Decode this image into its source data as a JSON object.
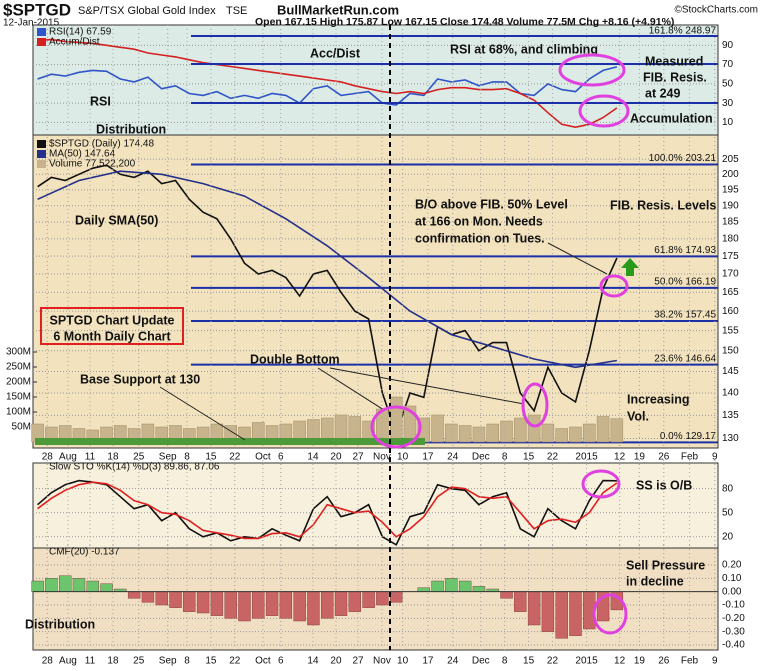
{
  "header": {
    "symbol": "$SPTGD",
    "name": "S&P/TSX Global Gold Index",
    "exchange": "TSE",
    "date": "12-Jan-2015",
    "site": "BullMarketRun.com",
    "quote": "Open 167.15  High 175.87  Low 167.15  Close 174.48  Volume 77.5M  Chg +8.16 (+4.91%)",
    "credit": "©StockCharts.com"
  },
  "annotations": [
    "Acc/Dist",
    "RSI at 68%, and climbing",
    "Measured",
    "FIB. Resis.",
    "at 249",
    "RSI",
    "Accumulation",
    "Distribution",
    "Daily SMA(50)",
    "B/O above FIB. 50% Level",
    "at 166 on Mon. Needs",
    "confirmation on Tues.",
    "FIB. Resis. Levels",
    "SPTGD Chart Update",
    "6 Month Daily Chart",
    "Double Bottom",
    "Base Support at 130",
    "Increasing",
    "Vol.",
    "SS is O/B",
    "Sell Pressure",
    "in decline",
    "Distribution",
    "161.8% 248.97"
  ],
  "chart_data": [
    {
      "type": "line",
      "xlim": [
        0,
        149
      ],
      "ylim": [
        0,
        108
      ],
      "yticks": [
        10,
        30,
        50,
        70,
        90
      ],
      "grid": true,
      "x": [
        1,
        4,
        7,
        10,
        13,
        16,
        19,
        22,
        25,
        28,
        31,
        34,
        37,
        40,
        43,
        46,
        49,
        52,
        55,
        58,
        61,
        64,
        67,
        70,
        73,
        76,
        79,
        82,
        85,
        88,
        91,
        94,
        97,
        100,
        103,
        106,
        109,
        112,
        115,
        118,
        121,
        124,
        127
      ],
      "series": [
        {
          "name": "RSI(14) 67.59",
          "color": "#2f55c8",
          "values": [
            55,
            60,
            58,
            62,
            64,
            63,
            55,
            52,
            57,
            45,
            48,
            40,
            38,
            42,
            35,
            38,
            35,
            40,
            38,
            30,
            45,
            48,
            38,
            40,
            42,
            30,
            28,
            40,
            38,
            55,
            52,
            54,
            48,
            52,
            52,
            40,
            38,
            50,
            44,
            42,
            55,
            64,
            67.59
          ]
        },
        {
          "name": "Accum/Dist",
          "color": "#d42020",
          "values": [
            95,
            96,
            94,
            93,
            92,
            90,
            88,
            86,
            82,
            80,
            78,
            75,
            72,
            70,
            68,
            66,
            64,
            62,
            60,
            58,
            56,
            54,
            52,
            48,
            45,
            42,
            40,
            42,
            40,
            44,
            46,
            46,
            44,
            44,
            45,
            40,
            33,
            20,
            8,
            5,
            8,
            15,
            25
          ]
        }
      ]
    },
    {
      "type": "line",
      "log": true,
      "xlim": [
        0,
        149
      ],
      "ylim": [
        128,
        211.5
      ],
      "yticks": [
        130,
        135,
        140,
        145,
        150,
        155,
        160,
        165,
        170,
        175,
        180,
        185,
        190,
        195,
        200,
        205
      ],
      "grid": true,
      "y2lim": [
        0,
        300000000
      ],
      "y2ticks": [
        {
          "value": 50000000,
          "label": "50M"
        },
        {
          "value": 100000000,
          "label": "100M"
        },
        {
          "value": 150000000,
          "label": "150M"
        },
        {
          "value": 200000000,
          "label": "200M"
        },
        {
          "value": 250000000,
          "label": "250M"
        },
        {
          "value": 300000000,
          "label": "300M"
        }
      ],
      "xticks": [
        {
          "value": 3.1,
          "label": "28"
        },
        {
          "value": 7.6,
          "label": "Aug"
        },
        {
          "value": 12.4,
          "label": "11"
        },
        {
          "value": 17.4,
          "label": "18"
        },
        {
          "value": 23,
          "label": "25"
        },
        {
          "value": 29.3,
          "label": "Sep"
        },
        {
          "value": 33.5,
          "label": "8"
        },
        {
          "value": 38.7,
          "label": "15"
        },
        {
          "value": 43.9,
          "label": "22"
        },
        {
          "value": 50,
          "label": "Oct"
        },
        {
          "value": 53.9,
          "label": "6"
        },
        {
          "value": 60.9,
          "label": "14"
        },
        {
          "value": 65.9,
          "label": "20"
        },
        {
          "value": 70.7,
          "label": "27"
        },
        {
          "value": 75.9,
          "label": "Nov"
        },
        {
          "value": 80.4,
          "label": "10"
        },
        {
          "value": 85.9,
          "label": "17"
        },
        {
          "value": 91.3,
          "label": "24"
        },
        {
          "value": 97.4,
          "label": "Dec"
        },
        {
          "value": 102.6,
          "label": "8"
        },
        {
          "value": 107.8,
          "label": "15"
        },
        {
          "value": 113,
          "label": "22"
        },
        {
          "value": 120.4,
          "label": "2015"
        },
        {
          "value": 127.6,
          "label": "12"
        },
        {
          "value": 131.9,
          "label": "19"
        },
        {
          "value": 137.2,
          "label": "26"
        },
        {
          "value": 142.8,
          "label": "Feb"
        },
        {
          "value": 148.3,
          "label": "9"
        }
      ],
      "fib_levels": [
        {
          "value": 203.21,
          "label": "100.0% 203.21"
        },
        {
          "value": 174.93,
          "label": "61.8% 174.93"
        },
        {
          "value": 166.19,
          "label": "50.0% 166.19"
        },
        {
          "value": 157.45,
          "label": "38.2% 157.45"
        },
        {
          "value": 146.64,
          "label": "23.6% 146.64"
        },
        {
          "value": 129.17,
          "label": "0.0% 129.17"
        }
      ],
      "x": [
        1,
        4,
        7,
        10,
        13,
        16,
        19,
        22,
        25,
        28,
        31,
        34,
        37,
        40,
        43,
        46,
        49,
        52,
        55,
        58,
        61,
        64,
        67,
        70,
        73,
        76,
        79,
        82,
        85,
        88,
        91,
        94,
        97,
        100,
        103,
        106,
        109,
        112,
        115,
        118,
        121,
        124,
        127
      ],
      "series": [
        {
          "name": "$SPTGD (Daily) 174.48",
          "color": "#111111",
          "values": [
            196,
            199,
            198,
            200,
            202,
            203,
            200,
            199,
            201,
            197,
            198,
            192,
            188,
            186,
            180,
            173,
            170,
            171,
            169,
            164,
            170,
            171,
            165,
            160,
            158,
            140,
            131,
            140,
            139,
            156,
            154,
            155,
            150,
            152,
            152,
            140,
            136,
            146,
            140,
            138,
            150,
            166,
            174.48
          ]
        },
        {
          "name": "MA(50) 147.64",
          "color": "#24308a",
          "x": [
            1,
            10,
            19,
            28,
            37,
            46,
            55,
            64,
            73,
            82,
            91,
            100,
            109,
            118,
            127
          ],
          "values": [
            192,
            198,
            201,
            200,
            197,
            193,
            186,
            178,
            169,
            160,
            154,
            151,
            148,
            146,
            147.64
          ]
        },
        {
          "name": "Volume 77,522,200",
          "color": "#c8b48c",
          "type": "bar",
          "axis": "y2",
          "values": [
            60000000,
            50000000,
            55000000,
            45000000,
            40000000,
            50000000,
            55000000,
            45000000,
            60000000,
            50000000,
            55000000,
            45000000,
            50000000,
            60000000,
            55000000,
            50000000,
            65000000,
            55000000,
            60000000,
            70000000,
            75000000,
            80000000,
            90000000,
            85000000,
            70000000,
            110000000,
            150000000,
            120000000,
            80000000,
            90000000,
            60000000,
            55000000,
            50000000,
            60000000,
            70000000,
            80000000,
            90000000,
            60000000,
            45000000,
            50000000,
            60000000,
            85000000,
            77500000
          ]
        }
      ]
    },
    {
      "type": "line",
      "title": "Slow STO %K(14) %D(3) 89.86, 87.06",
      "xlim": [
        0,
        149
      ],
      "ylim": [
        6,
        112
      ],
      "yticks": [
        20,
        50,
        80
      ],
      "grid": true,
      "x": [
        1,
        4,
        7,
        10,
        13,
        16,
        19,
        22,
        25,
        28,
        31,
        34,
        37,
        40,
        43,
        46,
        49,
        52,
        55,
        58,
        61,
        64,
        67,
        70,
        73,
        76,
        79,
        82,
        85,
        88,
        91,
        94,
        97,
        100,
        103,
        106,
        109,
        112,
        115,
        118,
        121,
        124,
        127
      ],
      "series": [
        {
          "color": "#111111",
          "values": [
            60,
            75,
            85,
            90,
            88,
            85,
            70,
            55,
            60,
            40,
            50,
            30,
            20,
            25,
            15,
            20,
            18,
            30,
            22,
            15,
            55,
            70,
            45,
            50,
            60,
            20,
            10,
            45,
            50,
            85,
            80,
            78,
            60,
            70,
            75,
            30,
            20,
            55,
            40,
            30,
            65,
            90,
            89.86
          ]
        },
        {
          "color": "#e02020",
          "values": [
            55,
            68,
            78,
            85,
            88,
            86,
            78,
            65,
            60,
            50,
            48,
            40,
            28,
            25,
            22,
            18,
            18,
            24,
            25,
            20,
            35,
            60,
            55,
            50,
            52,
            38,
            20,
            30,
            45,
            70,
            82,
            80,
            70,
            68,
            70,
            50,
            30,
            40,
            42,
            38,
            50,
            75,
            87.06
          ]
        }
      ]
    },
    {
      "type": "bar",
      "title": "CMF(20) -0.137",
      "xlim": [
        0,
        149
      ],
      "ylim": [
        -0.4375,
        0.3275
      ],
      "grid": true,
      "yticks": [
        {
          "value": 0.2,
          "label": "0.20"
        },
        {
          "value": 0.1,
          "label": "0.10"
        },
        {
          "value": 0,
          "label": "0.00"
        },
        {
          "value": -0.1,
          "label": "-0.10"
        },
        {
          "value": -0.2,
          "label": "-0.20"
        },
        {
          "value": -0.3,
          "label": "-0.30"
        },
        {
          "value": -0.4,
          "label": "-0.40"
        }
      ],
      "xticks": [
        {
          "value": 3.1,
          "label": "28"
        },
        {
          "value": 7.6,
          "label": "Aug"
        },
        {
          "value": 12.4,
          "label": "11"
        },
        {
          "value": 17.4,
          "label": "18"
        },
        {
          "value": 23,
          "label": "25"
        },
        {
          "value": 29.3,
          "label": "Sep"
        },
        {
          "value": 33.5,
          "label": "8"
        },
        {
          "value": 38.7,
          "label": "15"
        },
        {
          "value": 43.9,
          "label": "22"
        },
        {
          "value": 50,
          "label": "Oct"
        },
        {
          "value": 53.9,
          "label": "6"
        },
        {
          "value": 60.9,
          "label": "14"
        },
        {
          "value": 65.9,
          "label": "20"
        },
        {
          "value": 70.7,
          "label": "27"
        },
        {
          "value": 75.9,
          "label": "Nov"
        },
        {
          "value": 80.4,
          "label": "10"
        },
        {
          "value": 85.9,
          "label": "17"
        },
        {
          "value": 91.3,
          "label": "24"
        },
        {
          "value": 97.4,
          "label": "Dec"
        },
        {
          "value": 102.6,
          "label": "8"
        },
        {
          "value": 107.8,
          "label": "15"
        },
        {
          "value": 113,
          "label": "22"
        },
        {
          "value": 120.4,
          "label": "2015"
        },
        {
          "value": 127.6,
          "label": "12"
        },
        {
          "value": 131.9,
          "label": "19"
        },
        {
          "value": 137.2,
          "label": "26"
        },
        {
          "value": 142.8,
          "label": "Feb"
        },
        {
          "value": 148.3,
          "label": "9"
        }
      ],
      "colors": {
        "positive": "#6cc46c",
        "negative": "#c96464"
      },
      "x": [
        1,
        4,
        7,
        10,
        13,
        16,
        19,
        22,
        25,
        28,
        31,
        34,
        37,
        40,
        43,
        46,
        49,
        52,
        55,
        58,
        61,
        64,
        67,
        70,
        73,
        76,
        79,
        82,
        85,
        88,
        91,
        94,
        97,
        100,
        103,
        106,
        109,
        112,
        115,
        118,
        121,
        124,
        127
      ],
      "values": [
        0.08,
        0.1,
        0.12,
        0.1,
        0.08,
        0.06,
        0.02,
        -0.05,
        -0.08,
        -0.1,
        -0.12,
        -0.15,
        -0.16,
        -0.18,
        -0.2,
        -0.22,
        -0.2,
        -0.18,
        -0.2,
        -0.22,
        -0.25,
        -0.2,
        -0.18,
        -0.15,
        -0.12,
        -0.1,
        -0.08,
        0,
        0.03,
        0.08,
        0.1,
        0.08,
        0.04,
        0.02,
        -0.05,
        -0.15,
        -0.25,
        -0.3,
        -0.35,
        -0.33,
        -0.28,
        -0.22,
        -0.137
      ]
    }
  ]
}
